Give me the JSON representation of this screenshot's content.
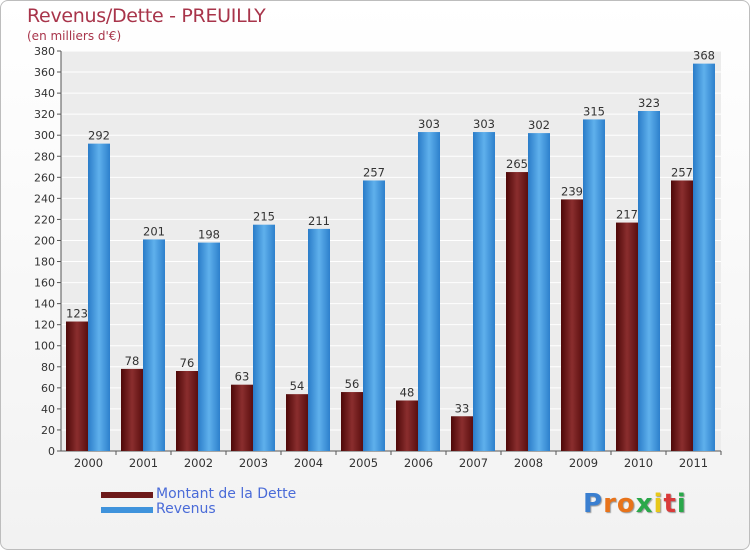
{
  "header": {
    "title": "Revenus/Dette - PREUILLY",
    "subtitle": "(en milliers d'€)"
  },
  "chart_data": {
    "type": "bar",
    "title": "Revenus/Dette - PREUILLY",
    "subtitle": "(en milliers d'€)",
    "categories": [
      "2000",
      "2001",
      "2002",
      "2003",
      "2004",
      "2005",
      "2006",
      "2007",
      "2008",
      "2009",
      "2010",
      "2011"
    ],
    "series": [
      {
        "name": "Montant de la Dette",
        "color": "#6e1a1a",
        "values": [
          123,
          78,
          76,
          63,
          54,
          56,
          48,
          33,
          265,
          239,
          217,
          257
        ]
      },
      {
        "name": "Revenus",
        "color": "#3f93dc",
        "values": [
          292,
          201,
          198,
          215,
          211,
          257,
          303,
          303,
          302,
          315,
          323,
          368
        ]
      }
    ],
    "ylim": [
      0,
      380
    ],
    "ytick_step": 20,
    "grid": true,
    "legend_position": "bottom-left",
    "xlabel": "",
    "ylabel": ""
  },
  "legend": {
    "items": [
      {
        "label": "Montant de la Dette",
        "color": "#6e1a1a"
      },
      {
        "label": "Revenus",
        "color": "#3f93dc"
      }
    ]
  },
  "logo": {
    "letters": [
      "P",
      "r",
      "o",
      "x",
      "i",
      "t",
      "i"
    ],
    "colors": [
      "#3a7fd0",
      "#e8731a",
      "#e8731a",
      "#2aa84a",
      "#e8c81a",
      "#d93a3a",
      "#2aa84a"
    ]
  }
}
